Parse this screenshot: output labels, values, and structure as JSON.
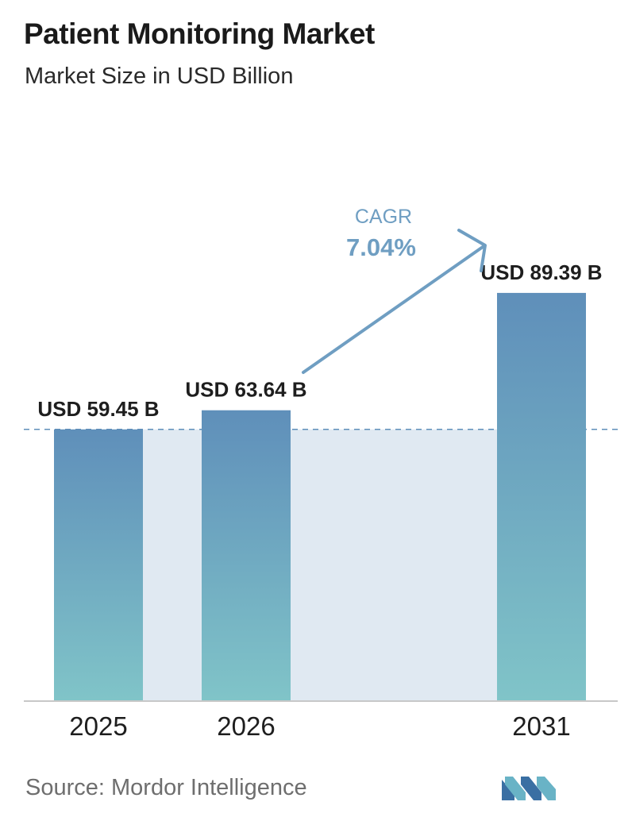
{
  "header": {
    "title": "Patient Monitoring Market",
    "subtitle": "Market Size in USD Billion"
  },
  "chart_data": {
    "type": "bar",
    "title": "Patient Monitoring Market",
    "subtitle": "Market Size in USD Billion",
    "categories": [
      "2025",
      "2026",
      "2031"
    ],
    "values": [
      59.45,
      63.64,
      89.39
    ],
    "data_labels": [
      "USD 59.45 B",
      "USD 63.64 B",
      "USD 89.39 B"
    ],
    "unit": "USD Billion",
    "ylim": [
      0,
      105
    ],
    "grid": false,
    "annotation": {
      "label": "CAGR",
      "value": "7.04%"
    },
    "colors": {
      "bar_top": "#5f8fba",
      "bar_bottom": "#80c4c8",
      "gap_band": "#e0e9f2",
      "dashed_line": "#5f8fba",
      "arrow": "#6f9ec2",
      "axis": "#c8c8c8"
    }
  },
  "footer": {
    "source": "Source:  Mordor Intelligence",
    "logo_icon": "mordor-intelligence-logo-icon"
  }
}
